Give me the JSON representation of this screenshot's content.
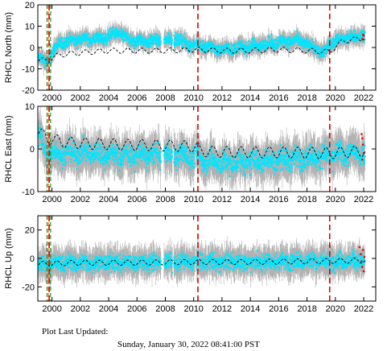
{
  "footer": {
    "label": "Plot Last Updated:",
    "value": "Sunday, January 30, 2022 08:41:00 PST"
  },
  "colors": {
    "errorbar": "#aaaaaa",
    "data": "#00e5ff",
    "model": "#000000",
    "break": "#e00000",
    "marker_green": "#2a8a2a",
    "marker_orange": "#e08020",
    "outlier": "#ff0000"
  },
  "chart_data": [
    {
      "type": "scatter",
      "ylabel": "RHCL North (mm)",
      "xlim": [
        1999.0,
        2022.85
      ],
      "ylim": [
        -20,
        20
      ],
      "yticks": [
        -20,
        -10,
        0,
        10,
        20
      ],
      "xticks": [
        2000,
        2002,
        2004,
        2006,
        2008,
        2010,
        2012,
        2014,
        2016,
        2018,
        2020,
        2022
      ],
      "xtick_labels": [
        "2000",
        "2002",
        "2004",
        "2006",
        "2008",
        "2010",
        "2012",
        "2014",
        "2016",
        "2018",
        "2020",
        "2022"
      ],
      "show_xtick_labels": true,
      "event_lines": [
        1999.8,
        2010.3,
        2019.6
      ],
      "green_lines": [
        1999.65,
        1999.9
      ],
      "orange_lines": [
        1999.75
      ],
      "trend_knots": [
        [
          1999.1,
          -6
        ],
        [
          1999.7,
          -6
        ],
        [
          2000.5,
          -3.5
        ],
        [
          2002,
          -2.5
        ],
        [
          2004,
          -1.5
        ],
        [
          2006,
          -1.5
        ],
        [
          2008,
          -1.5
        ],
        [
          2010.3,
          -1
        ],
        [
          2012,
          -1.5
        ],
        [
          2014,
          -1.5
        ],
        [
          2016,
          -1
        ],
        [
          2018,
          -1.5
        ],
        [
          2019.6,
          -2
        ],
        [
          2020.5,
          3
        ],
        [
          2022,
          4.5
        ]
      ],
      "trend_amp": 1.2,
      "data_mean": [
        [
          1999.1,
          -5
        ],
        [
          1999.6,
          -7
        ],
        [
          2000.5,
          2
        ],
        [
          2002,
          4
        ],
        [
          2003.5,
          4
        ],
        [
          2004.7,
          7
        ],
        [
          2005.5,
          3
        ],
        [
          2006.7,
          3
        ],
        [
          2007.5,
          3
        ],
        [
          2008.8,
          4
        ],
        [
          2009.5,
          2
        ],
        [
          2010.3,
          1
        ],
        [
          2011.2,
          0
        ],
        [
          2012,
          -1
        ],
        [
          2013.5,
          0
        ],
        [
          2014.5,
          1
        ],
        [
          2015.5,
          2
        ],
        [
          2016.6,
          3
        ],
        [
          2017.5,
          3
        ],
        [
          2018.5,
          0
        ],
        [
          2019.2,
          -3
        ],
        [
          2019.6,
          2
        ],
        [
          2020.5,
          4
        ],
        [
          2021.5,
          5
        ],
        [
          2022,
          6
        ]
      ],
      "data_spread": 3.2,
      "err_spread": 3.5,
      "gaps": [
        [
          2007.7,
          2007.9
        ],
        [
          2008.5,
          2008.6
        ],
        [
          2010.1,
          2010.15
        ]
      ],
      "outliers": [
        [
          2021.9,
          4
        ],
        [
          2021.95,
          6
        ],
        [
          2022.0,
          5.5
        ]
      ]
    },
    {
      "type": "scatter",
      "ylabel": "RHCL East (mm)",
      "xlim": [
        1999.0,
        2022.85
      ],
      "ylim": [
        -10,
        10
      ],
      "yticks": [
        -10,
        0,
        10
      ],
      "xticks": [
        2000,
        2002,
        2004,
        2006,
        2008,
        2010,
        2012,
        2014,
        2016,
        2018,
        2020,
        2022
      ],
      "xtick_labels": [
        "2000",
        "2002",
        "2004",
        "2006",
        "2008",
        "2010",
        "2012",
        "2014",
        "2016",
        "2018",
        "2020",
        "2022"
      ],
      "show_xtick_labels": true,
      "event_lines": [
        1999.8,
        2010.3,
        2019.6
      ],
      "green_lines": [
        1999.65,
        1999.9
      ],
      "orange_lines": [
        1999.75
      ],
      "trend_knots": [
        [
          1999.1,
          4
        ],
        [
          1999.7,
          2.5
        ],
        [
          2001,
          1.5
        ],
        [
          2003,
          1.2
        ],
        [
          2005,
          1
        ],
        [
          2008,
          0.8
        ],
        [
          2010.3,
          0.5
        ],
        [
          2010.4,
          -0.5
        ],
        [
          2013,
          -0.8
        ],
        [
          2016,
          -0.8
        ],
        [
          2019.6,
          -1
        ],
        [
          2019.7,
          -1
        ],
        [
          2022,
          -0.5
        ]
      ],
      "trend_amp": 1.3,
      "data_mean": [
        [
          1999.1,
          3
        ],
        [
          1999.6,
          -1
        ],
        [
          2001,
          -1
        ],
        [
          2003,
          -1
        ],
        [
          2005,
          -1.5
        ],
        [
          2007,
          -1.5
        ],
        [
          2009,
          -1.5
        ],
        [
          2010.3,
          -2
        ],
        [
          2012,
          -3.5
        ],
        [
          2014,
          -3
        ],
        [
          2016,
          -2.5
        ],
        [
          2018,
          -2
        ],
        [
          2019.6,
          -1.5
        ],
        [
          2021,
          -1
        ],
        [
          2022,
          -1
        ]
      ],
      "data_spread": 3.0,
      "err_spread": 3.8,
      "gaps": [
        [
          2007.7,
          2007.9
        ],
        [
          2008.5,
          2008.6
        ],
        [
          2010.1,
          2010.15
        ]
      ],
      "outliers": [
        [
          2021.85,
          3.5
        ],
        [
          2021.9,
          2.5
        ],
        [
          2021.95,
          1
        ],
        [
          2022.0,
          -1
        ],
        [
          2021.9,
          -2.5
        ]
      ]
    },
    {
      "type": "scatter",
      "ylabel": "RHCL Up (mm)",
      "xlim": [
        1999.0,
        2022.85
      ],
      "ylim": [
        -30,
        30
      ],
      "yticks": [
        -20,
        0,
        20
      ],
      "xticks": [
        2000,
        2002,
        2004,
        2006,
        2008,
        2010,
        2012,
        2014,
        2016,
        2018,
        2020,
        2022
      ],
      "xtick_labels": [
        "2000",
        "2002",
        "2004",
        "2006",
        "2008",
        "2010",
        "2012",
        "2014",
        "2016",
        "2018",
        "2020",
        "2022"
      ],
      "show_xtick_labels": true,
      "event_lines": [
        1999.8,
        2010.3,
        2019.6
      ],
      "green_lines": [
        1999.65,
        1999.9
      ],
      "orange_lines": [
        1999.75
      ],
      "trend_knots": [
        [
          1999.1,
          -4
        ],
        [
          2002,
          -3
        ],
        [
          2006,
          -3
        ],
        [
          2010.3,
          -2.5
        ],
        [
          2014,
          -2.5
        ],
        [
          2018,
          -2
        ],
        [
          2022,
          -1.5
        ]
      ],
      "trend_amp": 1.8,
      "data_mean": [
        [
          1999.1,
          -4
        ],
        [
          2002,
          -3
        ],
        [
          2006,
          -3
        ],
        [
          2010.3,
          -2.5
        ],
        [
          2014,
          -2.5
        ],
        [
          2018,
          -2
        ],
        [
          2022,
          -1.5
        ]
      ],
      "data_spread": 7,
      "err_spread": 9,
      "gaps": [
        [
          2007.7,
          2007.9
        ],
        [
          2008.5,
          2008.6
        ],
        [
          2010.1,
          2010.15
        ]
      ],
      "outliers": [
        [
          2021.7,
          8
        ],
        [
          2021.8,
          3
        ],
        [
          2021.85,
          -2
        ],
        [
          2021.9,
          -6
        ],
        [
          2021.95,
          6
        ],
        [
          2022.0,
          -9
        ],
        [
          2022.05,
          1
        ]
      ]
    }
  ]
}
